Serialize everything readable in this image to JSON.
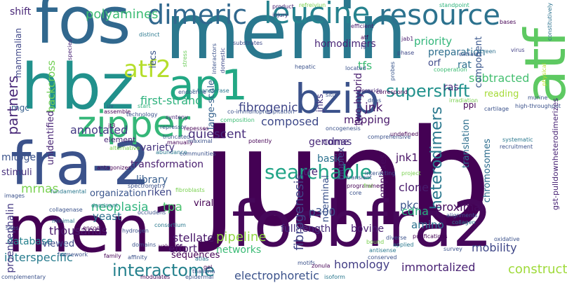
{
  "words": [
    {
      "text": "junb",
      "color": "#440154",
      "vertical": false
    },
    {
      "text": "menin",
      "color": "#2a788e",
      "vertical": false
    },
    {
      "text": "fosbfra2",
      "color": "#46075a",
      "vertical": false
    },
    {
      "text": "fra-2",
      "color": "#3b528b",
      "vertical": false
    },
    {
      "text": "men1",
      "color": "#440154",
      "vertical": false
    },
    {
      "text": "fos",
      "color": "#31688e",
      "vertical": false
    },
    {
      "text": "hbz",
      "color": "#21918c",
      "vertical": false
    },
    {
      "text": "atf",
      "color": "#5ec962",
      "vertical": true
    },
    {
      "text": "zipper",
      "color": "#35b779",
      "vertical": false
    },
    {
      "text": "ap1",
      "color": "#22a884",
      "vertical": false
    },
    {
      "text": "bzip",
      "color": "#3b528b",
      "vertical": false
    },
    {
      "text": "dimeric",
      "color": "#31688e",
      "vertical": false
    },
    {
      "text": "leucine",
      "color": "#26828e",
      "vertical": false
    },
    {
      "text": "resource",
      "color": "#2c728e",
      "vertical": false
    },
    {
      "text": "atf2",
      "color": "#b5de2b",
      "vertical": false
    },
    {
      "text": "searchable",
      "color": "#20a486",
      "vertical": false
    },
    {
      "text": "supershift",
      "color": "#21918c",
      "vertical": false
    },
    {
      "text": "interactome",
      "color": "#26828e",
      "vertical": false
    },
    {
      "text": "heterodimers",
      "color": "#2a788e",
      "vertical": true
    },
    {
      "text": "polyamines",
      "color": "#3dbc74",
      "vertical": false
    },
    {
      "text": "fibrogenesis",
      "color": "#414487",
      "vertical": true
    },
    {
      "text": "fibrogenic",
      "color": "#404688",
      "vertical": false
    },
    {
      "text": "partners",
      "color": "#482878",
      "vertical": true
    },
    {
      "text": "first-strand",
      "color": "#2db27d",
      "vertical": false
    },
    {
      "text": "annotated",
      "color": "#443983",
      "vertical": false
    },
    {
      "text": "composed",
      "color": "#3e4989",
      "vertical": false
    },
    {
      "text": "quiescent",
      "color": "#472d7b",
      "vertical": false
    },
    {
      "text": "variety",
      "color": "#46337e",
      "vertical": false
    },
    {
      "text": "transformation",
      "color": "#481d6f",
      "vertical": false
    },
    {
      "text": "library",
      "color": "#365c8d",
      "vertical": false
    },
    {
      "text": "riken",
      "color": "#3f4788",
      "vertical": false
    },
    {
      "text": "neoplasia",
      "color": "#2fb47c",
      "vertical": false
    },
    {
      "text": "yeast",
      "color": "#2c728e",
      "vertical": false
    },
    {
      "text": "thousands",
      "color": "#481a6c",
      "vertical": false
    },
    {
      "text": "stellate",
      "color": "#481769",
      "vertical": false
    },
    {
      "text": "effort",
      "color": "#48186a",
      "vertical": false
    },
    {
      "text": "full-length",
      "color": "#472e7c",
      "vertical": false
    },
    {
      "text": "pipeline",
      "color": "#90d743",
      "vertical": false
    },
    {
      "text": "electrophoretic",
      "color": "#3b528b",
      "vertical": false
    },
    {
      "text": "homology",
      "color": "#433e85",
      "vertical": false
    },
    {
      "text": "immortalized",
      "color": "#482173",
      "vertical": false
    },
    {
      "text": "construct",
      "color": "#9fda3a",
      "vertical": false
    },
    {
      "text": "mobility",
      "color": "#3f4788",
      "vertical": false
    },
    {
      "text": "interspecific",
      "color": "#287c8e",
      "vertical": false
    },
    {
      "text": "database",
      "color": "#26828e",
      "vertical": false
    },
    {
      "text": "mitogen",
      "color": "#3b528b",
      "vertical": false
    },
    {
      "text": "stimuli",
      "color": "#472f7d",
      "vertical": false
    },
    {
      "text": "mrnas",
      "color": "#7ad151",
      "vertical": false
    },
    {
      "text": "proenkephalin",
      "color": "#443983",
      "vertical": true
    },
    {
      "text": "backcross",
      "color": "#73d056",
      "vertical": true
    },
    {
      "text": "unidentified",
      "color": "#482475",
      "vertical": true
    },
    {
      "text": "large-scale",
      "color": "#34618d",
      "vertical": true
    },
    {
      "text": "iecs",
      "color": "#3a548c",
      "vertical": true
    },
    {
      "text": "jnks",
      "color": "#453882",
      "vertical": true
    },
    {
      "text": "tfs",
      "color": "#3dbc74",
      "vertical": false
    },
    {
      "text": "two-hybrid",
      "color": "#481b6d",
      "vertical": true
    },
    {
      "text": "jnk",
      "color": "#481769",
      "vertical": false
    },
    {
      "text": "genome",
      "color": "#482878",
      "vertical": false
    },
    {
      "text": "mapping",
      "color": "#48186a",
      "vertical": false
    },
    {
      "text": "jnk1",
      "color": "#471164",
      "vertical": false
    },
    {
      "text": "homodimers",
      "color": "#482576",
      "vertical": false
    },
    {
      "text": "priority",
      "color": "#32b67a",
      "vertical": false
    },
    {
      "text": "preparation",
      "color": "#2e6f8e",
      "vertical": false
    },
    {
      "text": "orf",
      "color": "#3e4989",
      "vertical": false
    },
    {
      "text": "rat",
      "color": "#2d708e",
      "vertical": false
    },
    {
      "text": "subtracted",
      "color": "#44bf70",
      "vertical": false
    },
    {
      "text": "component",
      "color": "#39568c",
      "vertical": true
    },
    {
      "text": "chromosomes",
      "color": "#2e6e8e",
      "vertical": true
    },
    {
      "text": "ras",
      "color": "#472a7a",
      "vertical": false
    },
    {
      "text": "reading",
      "color": "#a5db36",
      "vertical": false
    },
    {
      "text": "ppi",
      "color": "#440154",
      "vertical": false
    },
    {
      "text": "translation",
      "color": "#2e6f8e",
      "vertical": true
    },
    {
      "text": "gst-pulldownheterodimerizes",
      "color": "#482374",
      "vertical": true
    },
    {
      "text": "clone",
      "color": "#481a6c",
      "vertical": false
    },
    {
      "text": "proximal",
      "color": "#460b5e",
      "vertical": false
    },
    {
      "text": "cdna",
      "color": "#29af7f",
      "vertical": false
    },
    {
      "text": "amino",
      "color": "#2c728e",
      "vertical": false
    },
    {
      "text": "pkc",
      "color": "#3a548c",
      "vertical": false
    },
    {
      "text": "complexes",
      "color": "#460a5d",
      "vertical": true
    },
    {
      "text": "basic",
      "color": "#2c718e",
      "vertical": false
    },
    {
      "text": "tre",
      "color": "#482475",
      "vertical": false
    },
    {
      "text": "cdnas",
      "color": "#46307e",
      "vertical": false
    },
    {
      "text": "bioplex",
      "color": "#424186",
      "vertical": true
    },
    {
      "text": "n-terminal",
      "color": "#3b528b",
      "vertical": true
    },
    {
      "text": "p300",
      "color": "#3b528b",
      "vertical": false
    },
    {
      "text": "bovine",
      "color": "#481f70",
      "vertical": false
    },
    {
      "text": "tpa",
      "color": "#4ac16d",
      "vertical": false
    },
    {
      "text": "organization",
      "color": "#39558c",
      "vertical": false
    },
    {
      "text": "viewed",
      "color": "#3e4a89",
      "vertical": false
    },
    {
      "text": "mgc",
      "color": "#355f8d",
      "vertical": false
    },
    {
      "text": "shift",
      "color": "#482677",
      "vertical": false
    },
    {
      "text": "mammalian",
      "color": "#3f4788",
      "vertical": true
    },
    {
      "text": "sequences",
      "color": "#440154",
      "vertical": false
    },
    {
      "text": "networks",
      "color": "#3bbb75",
      "vertical": false
    },
    {
      "text": "element",
      "color": "#482374",
      "vertical": false
    },
    {
      "text": "viral",
      "color": "#440154",
      "vertical": false
    },
    {
      "text": "injury",
      "color": "#46307e",
      "vertical": false
    },
    {
      "text": "product",
      "color": "#482071",
      "vertical": false
    },
    {
      "text": "substrates",
      "color": "#3e4a89",
      "vertical": false
    },
    {
      "text": "distinct",
      "color": "#2a788e",
      "vertical": false
    },
    {
      "text": "species",
      "color": "#482374",
      "vertical": true
    },
    {
      "text": "interactors",
      "color": "#3b528b",
      "vertical": true
    },
    {
      "text": "domestic",
      "color": "#3e4989",
      "vertical": true
    },
    {
      "text": "stress",
      "color": "#6ccd5a",
      "vertical": true
    },
    {
      "text": "refreiviun",
      "color": "#7ad151",
      "vertical": false
    },
    {
      "text": "efficient",
      "color": "#481a6c",
      "vertical": false
    },
    {
      "text": "standpoint",
      "color": "#2fb47c",
      "vertical": false
    },
    {
      "text": "bases",
      "color": "#440154",
      "vertical": false
    },
    {
      "text": "constitutively",
      "color": "#2c728e",
      "vertical": true
    },
    {
      "text": "jab1",
      "color": "#481a6c",
      "vertical": false
    },
    {
      "text": "phase",
      "color": "#3e4989",
      "vertical": false
    },
    {
      "text": "atf",
      "color": "#440154",
      "vertical": false
    },
    {
      "text": "f9",
      "color": "#3e4989",
      "vertical": false
    },
    {
      "text": "probes",
      "color": "#39568c",
      "vertical": true
    },
    {
      "text": "screen",
      "color": "#2d708e",
      "vertical": false
    },
    {
      "text": "extracts",
      "color": "#3b528b",
      "vertical": false
    },
    {
      "text": "virus",
      "color": "#424086",
      "vertical": false
    },
    {
      "text": "physical",
      "color": "#b8de29",
      "vertical": true
    },
    {
      "text": "murine",
      "color": "#3b528b",
      "vertical": false
    },
    {
      "text": "high-throughput",
      "color": "#3b528b",
      "vertical": false
    },
    {
      "text": "cartilage",
      "color": "#3b528b",
      "vertical": false
    },
    {
      "text": "cooperation",
      "color": "#3dbc74",
      "vertical": false
    },
    {
      "text": "located",
      "color": "#3b528b",
      "vertical": false
    },
    {
      "text": "hepatic",
      "color": "#3b528b",
      "vertical": false
    },
    {
      "text": "correspond",
      "color": "#440154",
      "vertical": false
    },
    {
      "text": "dnas",
      "color": "#3b528b",
      "vertical": false
    },
    {
      "text": "peroxide",
      "color": "#482878",
      "vertical": false
    },
    {
      "text": "irradiation",
      "color": "#7ad151",
      "vertical": false
    },
    {
      "text": "situ",
      "color": "#3b528b",
      "vertical": false
    },
    {
      "text": "s-transferase",
      "color": "#2a788e",
      "vertical": false
    },
    {
      "text": "endocrine",
      "color": "#3b528b",
      "vertical": false
    },
    {
      "text": "assemble",
      "color": "#440154",
      "vertical": false
    },
    {
      "text": "uv",
      "color": "#3b528b",
      "vertical": false
    },
    {
      "text": "technology",
      "color": "#3b528b",
      "vertical": false
    },
    {
      "text": "start",
      "color": "#2fb47c",
      "vertical": false
    },
    {
      "text": "synteny",
      "color": "#482475",
      "vertical": false
    },
    {
      "text": "co-immunoprecipitation",
      "color": "#3b528b",
      "vertical": false
    },
    {
      "text": "composition",
      "color": "#3dbc74",
      "vertical": false
    },
    {
      "text": "repressor",
      "color": "#3b528b",
      "vertical": false
    },
    {
      "text": "repesses",
      "color": "#440154",
      "vertical": false
    },
    {
      "text": "truncated",
      "color": "#3b528b",
      "vertical": false
    },
    {
      "text": "manually",
      "color": "#440154",
      "vertical": false
    },
    {
      "text": "maximal",
      "color": "#3b528b",
      "vertical": false
    },
    {
      "text": "potently",
      "color": "#440154",
      "vertical": false
    },
    {
      "text": "oncogenesis",
      "color": "#3b528b",
      "vertical": false
    },
    {
      "text": "comprehensive",
      "color": "#3b528b",
      "vertical": false
    },
    {
      "text": "systematic",
      "color": "#2a788e",
      "vertical": false
    },
    {
      "text": "recruitment",
      "color": "#3b528b",
      "vertical": false
    },
    {
      "text": "jt3",
      "color": "#440154",
      "vertical": false
    },
    {
      "text": "alternative",
      "color": "#7ad151",
      "vertical": false
    },
    {
      "text": "abundance",
      "color": "#2a788e",
      "vertical": false
    },
    {
      "text": "communities",
      "color": "#3b528b",
      "vertical": false
    },
    {
      "text": "images",
      "color": "#3b528b",
      "vertical": false
    },
    {
      "text": "antagonizes",
      "color": "#440154",
      "vertical": false
    },
    {
      "text": "fundamental",
      "color": "#2a788e",
      "vertical": false
    },
    {
      "text": "collagenase",
      "color": "#3b528b",
      "vertical": false
    },
    {
      "text": "minimal",
      "color": "#2a788e",
      "vertical": false
    },
    {
      "text": "spectrometry",
      "color": "#3b528b",
      "vertical": false
    },
    {
      "text": "fibroblasts",
      "color": "#7ad151",
      "vertical": false
    },
    {
      "text": "dominant",
      "color": "#2a788e",
      "vertical": false
    },
    {
      "text": "occludens",
      "color": "#3b528b",
      "vertical": false
    },
    {
      "text": "encodes",
      "color": "#440154",
      "vertical": false
    },
    {
      "text": "hydrogen",
      "color": "#3b528b",
      "vertical": false
    },
    {
      "text": "consortium",
      "color": "#2a788e",
      "vertical": false
    },
    {
      "text": "sites",
      "color": "#3b528b",
      "vertical": false
    },
    {
      "text": "domains",
      "color": "#3b528b",
      "vertical": false
    },
    {
      "text": "valuable",
      "color": "#440154",
      "vertical": false
    },
    {
      "text": "framework",
      "color": "#3b528b",
      "vertical": false
    },
    {
      "text": "family",
      "color": "#440154",
      "vertical": false
    },
    {
      "text": "affinity",
      "color": "#3b528b",
      "vertical": false
    },
    {
      "text": "atlas",
      "color": "#2a788e",
      "vertical": false
    },
    {
      "text": "gel",
      "color": "#440154",
      "vertical": false
    },
    {
      "text": "thaliana",
      "color": "#3b528b",
      "vertical": false
    },
    {
      "text": "epidermal",
      "color": "#3b528b",
      "vertical": false
    },
    {
      "text": "complementary",
      "color": "#3b528b",
      "vertical": false
    },
    {
      "text": "modulates",
      "color": "#440154",
      "vertical": false
    },
    {
      "text": "isoform",
      "color": "#2a788e",
      "vertical": false
    },
    {
      "text": "motifs",
      "color": "#3b528b",
      "vertical": false
    },
    {
      "text": "zonula",
      "color": "#440154",
      "vertical": false
    },
    {
      "text": "conserved",
      "color": "#3b528b",
      "vertical": false
    },
    {
      "text": "antisense",
      "color": "#2a788e",
      "vertical": false
    },
    {
      "text": "bound",
      "color": "#7ad151",
      "vertical": false
    },
    {
      "text": "survey",
      "color": "#3b528b",
      "vertical": false
    },
    {
      "text": "oxidative",
      "color": "#3b528b",
      "vertical": false
    },
    {
      "text": "purifications",
      "color": "#440154",
      "vertical": false
    },
    {
      "text": "collagen",
      "color": "#2a788e",
      "vertical": false
    },
    {
      "text": "alignments",
      "color": "#3b528b",
      "vertical": false
    },
    {
      "text": "transient",
      "color": "#3b528b",
      "vertical": false
    },
    {
      "text": "programmed",
      "color": "#440154",
      "vertical": false
    },
    {
      "text": "core",
      "color": "#3b528b",
      "vertical": false
    },
    {
      "text": "interacting",
      "color": "#3b528b",
      "vertical": false
    },
    {
      "text": "fral",
      "color": "#7ad151",
      "vertical": false
    },
    {
      "text": "diverse",
      "color": "#3b528b",
      "vertical": false
    },
    {
      "text": "applied",
      "color": "#2a788e",
      "vertical": false
    },
    {
      "text": "project",
      "color": "#7ad151",
      "vertical": false
    },
    {
      "text": "undefined",
      "color": "#440154",
      "vertical": false
    }
  ]
}
